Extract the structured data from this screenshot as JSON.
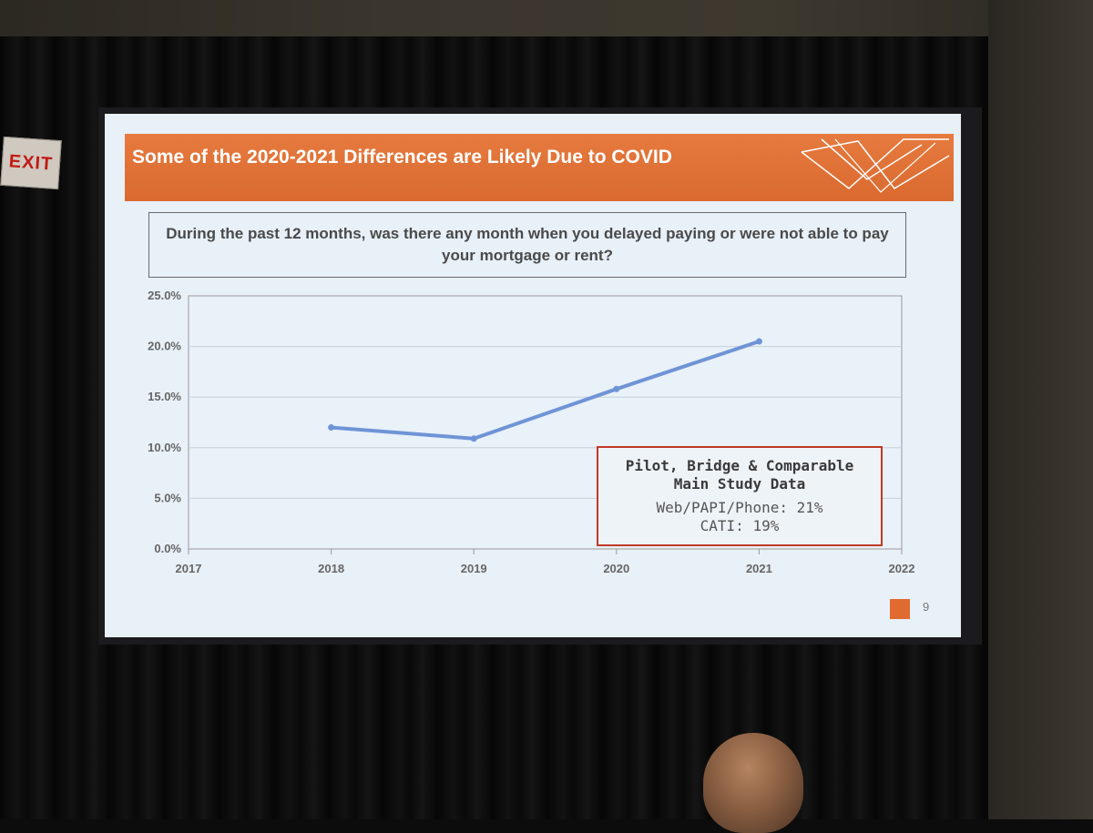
{
  "exit_sign": {
    "text": "EXIT"
  },
  "slide": {
    "title": "Some of the 2020-2021 Differences are Likely Due to COVID",
    "question": "During the past 12 months, was there any month when you delayed paying or were not able to pay your mortgage or rent?",
    "slide_number": "9",
    "logo": "decorative-line-logo"
  },
  "legend_box": {
    "title_line1": "Pilot, Bridge & Comparable",
    "title_line2": "Main Study Data",
    "line1": "Web/PAPI/Phone: 21%",
    "line2": "CATI: 19%"
  },
  "colors": {
    "title_bar": "#e06a30",
    "line": "#6f94d6",
    "legend_border": "#c0392b",
    "slide_bg": "#e8f0f8"
  },
  "chart_data": {
    "type": "line",
    "title": "",
    "xlabel": "",
    "ylabel": "",
    "x_ticks": [
      "2017",
      "2018",
      "2019",
      "2020",
      "2021",
      "2022"
    ],
    "y_ticks": [
      "0.0%",
      "5.0%",
      "10.0%",
      "15.0%",
      "20.0%",
      "25.0%"
    ],
    "xlim": [
      2017,
      2022
    ],
    "ylim": [
      0,
      25
    ],
    "grid": true,
    "series": [
      {
        "x": [
          2018,
          2019,
          2020,
          2021
        ],
        "values": [
          12.0,
          10.9,
          15.8,
          20.5
        ]
      }
    ]
  }
}
